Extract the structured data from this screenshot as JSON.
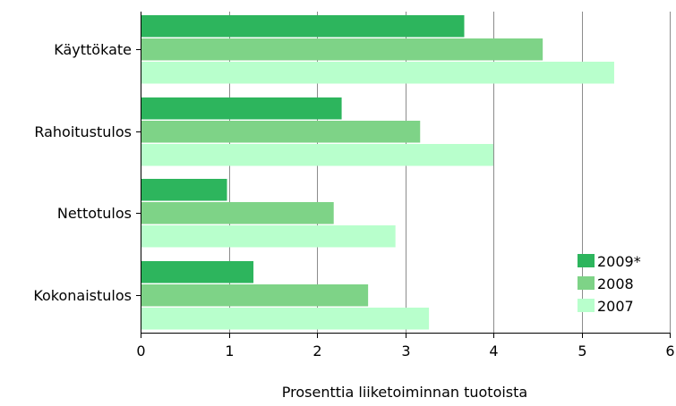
{
  "chart_data": {
    "type": "bar",
    "orientation": "horizontal",
    "title": "",
    "xlabel": "Prosenttia liiketoiminnan tuotoista",
    "ylabel": "",
    "xlim": [
      0,
      6
    ],
    "x_ticks": [
      "0",
      "1",
      "2",
      "3",
      "4",
      "5",
      "6"
    ],
    "grid": "vertical",
    "legend_position": "bottom-right inside plot",
    "categories": [
      "Käyttökate",
      "Rahoitustulos",
      "Nettotulos",
      "Kokonaistulos"
    ],
    "series": [
      {
        "name": "2009*",
        "color": "#2db55d",
        "values": [
          3.67,
          2.28,
          0.98,
          1.28
        ]
      },
      {
        "name": "2008",
        "color": "#7ed387",
        "values": [
          4.56,
          3.17,
          2.19,
          2.58
        ]
      },
      {
        "name": "2007",
        "color": "#b8ffcc",
        "values": [
          5.37,
          4.0,
          2.89,
          3.27
        ]
      }
    ]
  }
}
